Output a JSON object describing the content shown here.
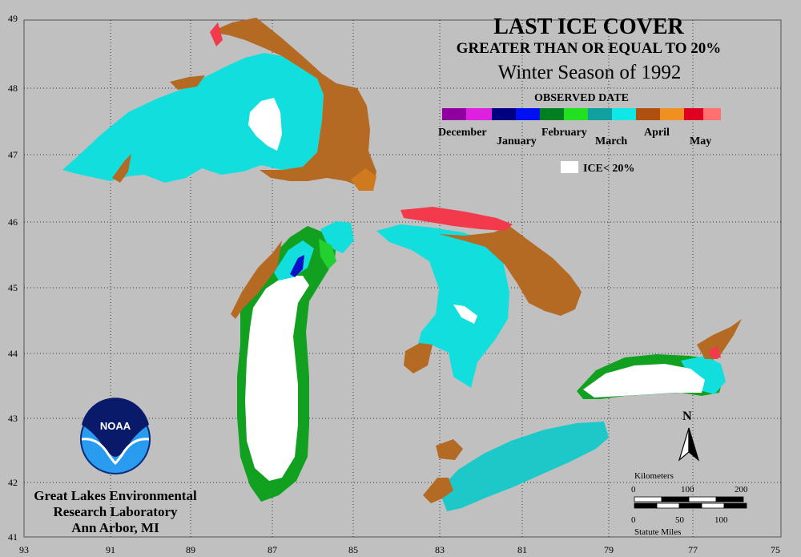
{
  "title": {
    "line1": "LAST ICE COVER",
    "line2": "GREATER THAN OR EQUAL TO 20%",
    "line3": "Winter Season of 1992"
  },
  "legend": {
    "heading": "OBSERVED DATE",
    "months": [
      "December",
      "January",
      "February",
      "March",
      "April",
      "May"
    ],
    "colors": {
      "december": "#b020c0",
      "january": "#0a10c8",
      "february": "#10a020",
      "march": "#10e0e0",
      "april": "#b86a20",
      "may": "#f03040",
      "ice_lt_20": "#ffffff"
    },
    "ice_label": "ICE< 20%"
  },
  "axes": {
    "latitudes": [
      "49",
      "48",
      "47",
      "46",
      "45",
      "44",
      "43",
      "42",
      "41"
    ],
    "longitudes": [
      "93",
      "91",
      "89",
      "87",
      "85",
      "83",
      "81",
      "79",
      "77",
      "75"
    ]
  },
  "north_label": "N",
  "scale": {
    "km_label": "Kilometers",
    "km_ticks": [
      "0",
      "100",
      "200"
    ],
    "mi_ticks": [
      "0",
      "50",
      "100"
    ],
    "mi_label": "Statute Miles"
  },
  "logo": {
    "text": "NOAA"
  },
  "organization": {
    "line1": "Great Lakes Environmental",
    "line2": "Research Laboratory",
    "line3": "Ann Arbor, MI"
  }
}
